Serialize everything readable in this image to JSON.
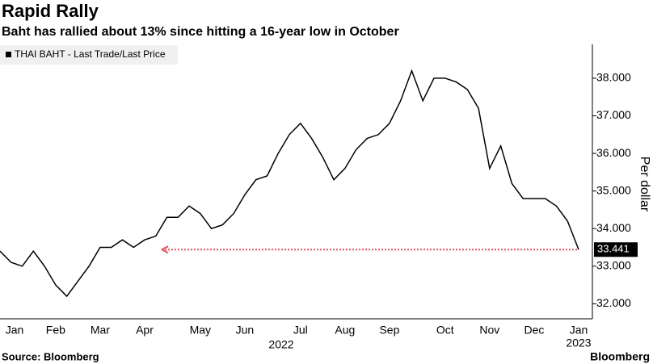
{
  "chart_data": {
    "type": "line",
    "title": "Rapid Rally",
    "subtitle": "Baht has rallied about 13% since hitting a 16-year low in October",
    "y_axis_label": "Per dollar",
    "source": "Source: Bloomberg",
    "brand": "Bloomberg",
    "legend_position": "upper left",
    "grid": false,
    "categories": [
      null,
      "Jan",
      null,
      null,
      null,
      "Feb",
      null,
      null,
      null,
      "Mar",
      null,
      null,
      null,
      "Apr",
      null,
      null,
      null,
      null,
      "May",
      null,
      null,
      null,
      "Jun",
      null,
      null,
      null,
      null,
      "Jul",
      null,
      null,
      null,
      "Aug",
      null,
      null,
      null,
      "Sep",
      null,
      null,
      null,
      null,
      "Oct",
      null,
      null,
      null,
      "Nov",
      null,
      null,
      null,
      "Dec",
      null,
      null,
      null,
      "Jan"
    ],
    "x_years": [
      "2022",
      "2023"
    ],
    "series": [
      {
        "name": "THAI BAHT - Last Trade/Last Price",
        "color": "#000000",
        "values": [
          33.4,
          33.1,
          33.0,
          33.4,
          33.0,
          32.5,
          32.2,
          32.6,
          33.0,
          33.5,
          33.5,
          33.7,
          33.5,
          33.7,
          33.8,
          34.3,
          34.3,
          34.6,
          34.4,
          34.0,
          34.1,
          34.4,
          34.9,
          35.3,
          35.4,
          36.0,
          36.5,
          36.8,
          36.4,
          35.9,
          35.3,
          35.6,
          36.1,
          36.4,
          36.5,
          36.8,
          37.4,
          38.2,
          37.4,
          38.0,
          38.0,
          37.9,
          37.7,
          37.2,
          35.6,
          36.2,
          35.2,
          34.8,
          34.8,
          34.8,
          34.6,
          34.2,
          33.441
        ]
      }
    ],
    "ylim": [
      31.6,
      38.9
    ],
    "yticks": [
      {
        "value": 32,
        "label": "32.000"
      },
      {
        "value": 33,
        "label": "33.000"
      },
      {
        "value": 34,
        "label": "34.000"
      },
      {
        "value": 35,
        "label": "35.000"
      },
      {
        "value": 36,
        "label": "36.000"
      },
      {
        "value": 37,
        "label": "37.000"
      },
      {
        "value": 38,
        "label": "38.000"
      }
    ],
    "annotation_color": "#e8505b"
  }
}
